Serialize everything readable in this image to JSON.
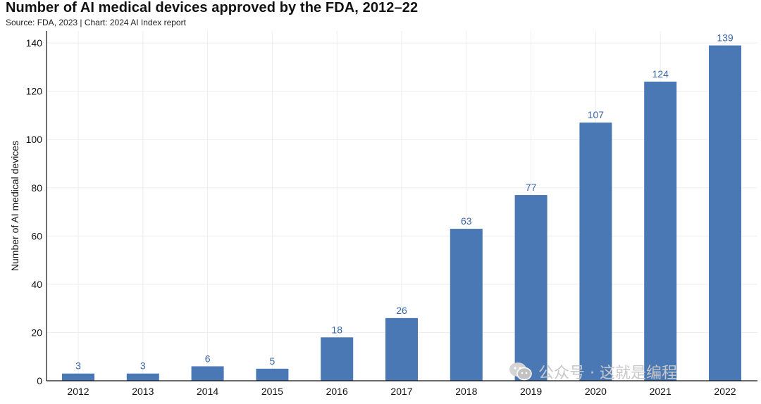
{
  "header": {
    "title": "Number of AI medical devices approved by the FDA, 2012–22",
    "source": "Source: FDA, 2023 | Chart: 2024 AI Index report"
  },
  "watermark": {
    "text": "公众号 · 这就是编程",
    "icon": "wechat-icon"
  },
  "colors": {
    "bar": "#4a78b5",
    "label": "#3a66a6",
    "grid": "#eeeeee",
    "axis": "#111111"
  },
  "chart_data": {
    "type": "bar",
    "title": "Number of AI medical devices approved by the FDA, 2012–22",
    "subtitle": "Source: FDA, 2023 | Chart: 2024 AI Index report",
    "xlabel": "",
    "ylabel": "Number of AI medical devices",
    "categories": [
      "2012",
      "2013",
      "2014",
      "2015",
      "2016",
      "2017",
      "2018",
      "2019",
      "2020",
      "2021",
      "2022"
    ],
    "values": [
      3,
      3,
      6,
      5,
      18,
      26,
      63,
      77,
      107,
      124,
      139
    ],
    "ylim": [
      0,
      145
    ],
    "yticks": [
      0,
      20,
      40,
      60,
      80,
      100,
      120,
      140
    ],
    "grid": true,
    "data_labels": true
  }
}
